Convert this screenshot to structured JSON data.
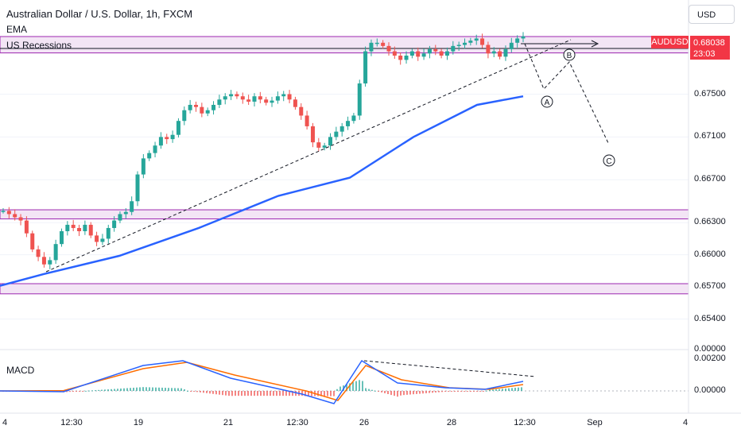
{
  "header": {
    "title": "Australian Dollar / U.S. Dollar, 1h, FXCM",
    "ema_label": "EMA",
    "recessions_label": "US Recessions",
    "macd_label": "MACD",
    "currency_button": "USD"
  },
  "price_tag": {
    "symbol": "AUDUSD",
    "price": "0.68038",
    "countdown": "23:03"
  },
  "colors": {
    "up": "#26a69a",
    "down": "#ef5350",
    "ema": "#2962ff",
    "macd_line": "#2962ff",
    "signal_line": "#ff6d00",
    "zone_fill": "#f3e5f5",
    "zone_border": "#9c27b0",
    "price_tag": "#f23645"
  },
  "chart_data": {
    "type": "candlestick",
    "title": "Australian Dollar / U.S. Dollar, 1h, FXCM",
    "price_axis": {
      "ticks": [
        "0.67500",
        "0.67100",
        "0.66700",
        "0.66300",
        "0.66000",
        "0.65700",
        "0.65400"
      ],
      "range": [
        0.6532,
        0.6822
      ]
    },
    "x_ticks": [
      "4",
      "12:30",
      "19",
      "21",
      "12:30",
      "26",
      "28",
      "12:30",
      "Sep",
      "4"
    ],
    "close_path": [
      0.6641,
      0.6638,
      0.6635,
      0.6632,
      0.662,
      0.6605,
      0.6598,
      0.6591,
      0.6595,
      0.661,
      0.6622,
      0.6628,
      0.6625,
      0.6622,
      0.6628,
      0.6618,
      0.6612,
      0.6615,
      0.6625,
      0.6632,
      0.6638,
      0.664,
      0.665,
      0.6675,
      0.669,
      0.6695,
      0.6702,
      0.671,
      0.6708,
      0.6712,
      0.6725,
      0.6735,
      0.674,
      0.6738,
      0.6732,
      0.6735,
      0.674,
      0.6745,
      0.6748,
      0.675,
      0.6748,
      0.6745,
      0.6743,
      0.6748,
      0.6745,
      0.6742,
      0.6744,
      0.6748,
      0.675,
      0.6745,
      0.6738,
      0.673,
      0.672,
      0.6705,
      0.67,
      0.6702,
      0.671,
      0.6715,
      0.672,
      0.6725,
      0.673,
      0.676,
      0.679,
      0.6798,
      0.6798,
      0.6795,
      0.679,
      0.6786,
      0.6782,
      0.6786,
      0.679,
      0.6785,
      0.6788,
      0.6792,
      0.679,
      0.6786,
      0.679,
      0.6795,
      0.6796,
      0.6798,
      0.68,
      0.6802,
      0.6796,
      0.6788,
      0.679,
      0.6785,
      0.6792,
      0.6798,
      0.6802,
      0.6804
    ],
    "series": [
      {
        "name": "EMA",
        "points": [
          [
            0,
            0.6571
          ],
          [
            55,
            0.6582
          ],
          [
            150,
            0.6599
          ],
          [
            250,
            0.6625
          ],
          [
            350,
            0.6655
          ],
          [
            440,
            0.6672
          ],
          [
            520,
            0.671
          ],
          [
            600,
            0.674
          ],
          [
            658,
            0.6748
          ]
        ]
      },
      {
        "name": "MACD",
        "points": [
          [
            0,
            0.0
          ],
          [
            80,
            -5e-05
          ],
          [
            180,
            0.0016
          ],
          [
            230,
            0.0019
          ],
          [
            290,
            0.0008
          ],
          [
            380,
            -0.0002
          ],
          [
            420,
            -0.0008
          ],
          [
            455,
            0.0019
          ],
          [
            500,
            0.0005
          ],
          [
            560,
            0.0002
          ],
          [
            610,
            0.0001
          ],
          [
            658,
            0.0006
          ]
        ]
      },
      {
        "name": "Signal",
        "points": [
          [
            0,
            0.0
          ],
          [
            80,
            2e-05
          ],
          [
            180,
            0.0014
          ],
          [
            235,
            0.0018
          ],
          [
            295,
            0.001
          ],
          [
            385,
            0.0
          ],
          [
            425,
            -0.0006
          ],
          [
            460,
            0.0016
          ],
          [
            505,
            0.0007
          ],
          [
            565,
            0.0002
          ],
          [
            615,
            0.0001
          ],
          [
            658,
            0.0004
          ]
        ]
      }
    ],
    "zones": [
      {
        "from": 0.68038,
        "to": 0.679
      },
      {
        "from": 0.6642,
        "to": 0.6635
      },
      {
        "from": 0.6573,
        "to": 0.6565
      }
    ],
    "macd_axis": {
      "ticks": [
        "0.00000",
        "0.00200",
        "0.00000"
      ]
    },
    "annotations": [
      "A",
      "B",
      "C"
    ]
  }
}
